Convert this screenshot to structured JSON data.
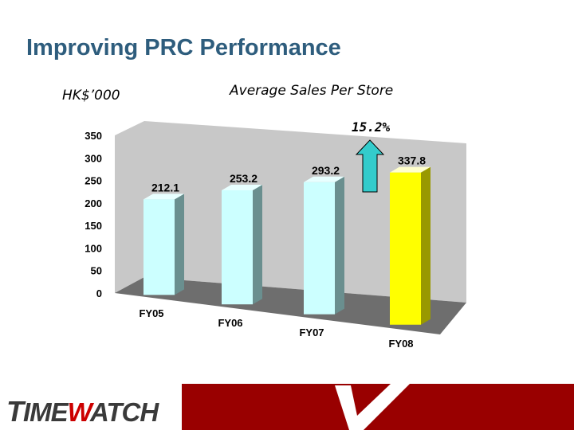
{
  "slide": {
    "title": "Improving PRC Performance",
    "unit": "HK$’000",
    "growth_label": "15.2%"
  },
  "logo": {
    "text_part1": "T",
    "text_part2": "IME",
    "text_part3": "W",
    "text_part4": "ATCH"
  },
  "colors": {
    "title": "#2e5d7d",
    "bar_default": "#ccffff",
    "bar_highlight": "#ffff00",
    "arrow": "#33cccc",
    "footer": "#990000"
  },
  "icons": {
    "growth_arrow": "up-arrow-icon",
    "logo_mark": "checkmark-icon"
  },
  "chart_data": {
    "type": "bar",
    "title": "Average Sales Per Store",
    "categories": [
      "FY05",
      "FY06",
      "FY07",
      "FY08"
    ],
    "values": [
      212.1,
      253.2,
      293.2,
      337.8
    ],
    "data_labels": [
      "212.1",
      "253.2",
      "293.2",
      "337.8"
    ],
    "highlight_index": 3,
    "ylim": [
      0,
      350
    ],
    "yticks": [
      0,
      50,
      100,
      150,
      200,
      250,
      300,
      350
    ],
    "grid": false,
    "style": "3d"
  }
}
